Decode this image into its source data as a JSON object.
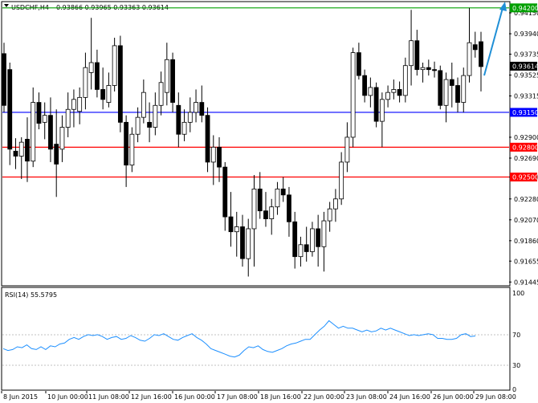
{
  "header": {
    "symbol": "USDCHF,H4",
    "ohlc": "0.93866 0.93965 0.93363 0.93614"
  },
  "rsi": {
    "label": "RSI(14) 55.5795",
    "levels": [
      "100",
      "70",
      "30",
      "0"
    ]
  },
  "colors": {
    "bull_body": "#ffffff",
    "bear_body": "#000000",
    "candle_line": "#000000",
    "level_green": "#00a000",
    "level_blue": "#0000ff",
    "level_red": "#ff0000",
    "rsi_line": "#1e90ff",
    "arrow": "#1f8fd6",
    "current_price_box": "#000000"
  },
  "chart_data": {
    "type": "candlestick",
    "price_axis": [
      "0.94150",
      "0.93940",
      "0.93735",
      "0.93525",
      "0.93315",
      "0.92900",
      "0.92690",
      "0.92500",
      "0.92280",
      "0.92070",
      "0.91860",
      "0.91655",
      "0.91445"
    ],
    "ylim": [
      0.91415,
      0.94255
    ],
    "levels": [
      {
        "price": 0.942,
        "label": "0.94200",
        "color": "green"
      },
      {
        "price": 0.9315,
        "label": "0.93150",
        "color": "blue"
      },
      {
        "price": 0.928,
        "label": "0.92800",
        "color": "red"
      },
      {
        "price": 0.925,
        "label": "0.92500",
        "color": "red"
      }
    ],
    "current_price": {
      "value": 0.93614,
      "label": "0.93614"
    },
    "x_labels": [
      "8 Jun 2015",
      "10 Jun 00:00",
      "11 Jun 08:00",
      "12 Jun 16:00",
      "16 Jun 00:00",
      "17 Jun 08:00",
      "18 Jun 16:00",
      "22 Jun 00:00",
      "23 Jun 08:00",
      "24 Jun 16:00",
      "26 Jun 00:00",
      "29 Jun 08:00"
    ],
    "candles": [
      {
        "o": 0.9374,
        "h": 0.9385,
        "l": 0.9315,
        "c": 0.9322
      },
      {
        "o": 0.9358,
        "h": 0.9365,
        "l": 0.9262,
        "c": 0.9278
      },
      {
        "o": 0.9276,
        "h": 0.9289,
        "l": 0.9258,
        "c": 0.9271
      },
      {
        "o": 0.9271,
        "h": 0.929,
        "l": 0.9248,
        "c": 0.9285
      },
      {
        "o": 0.9288,
        "h": 0.931,
        "l": 0.9245,
        "c": 0.9266
      },
      {
        "o": 0.9266,
        "h": 0.934,
        "l": 0.926,
        "c": 0.9325
      },
      {
        "o": 0.9325,
        "h": 0.9335,
        "l": 0.9298,
        "c": 0.9304
      },
      {
        "o": 0.9305,
        "h": 0.9325,
        "l": 0.9288,
        "c": 0.9312
      },
      {
        "o": 0.9312,
        "h": 0.933,
        "l": 0.9265,
        "c": 0.9278
      },
      {
        "o": 0.9283,
        "h": 0.9318,
        "l": 0.923,
        "c": 0.9263
      },
      {
        "o": 0.9278,
        "h": 0.9312,
        "l": 0.9265,
        "c": 0.93
      },
      {
        "o": 0.93,
        "h": 0.9335,
        "l": 0.929,
        "c": 0.9318
      },
      {
        "o": 0.9318,
        "h": 0.9338,
        "l": 0.93,
        "c": 0.9328
      },
      {
        "o": 0.9316,
        "h": 0.934,
        "l": 0.9303,
        "c": 0.933
      },
      {
        "o": 0.933,
        "h": 0.9375,
        "l": 0.9318,
        "c": 0.936
      },
      {
        "o": 0.9355,
        "h": 0.941,
        "l": 0.9338,
        "c": 0.9365
      },
      {
        "o": 0.9365,
        "h": 0.9378,
        "l": 0.933,
        "c": 0.9338
      },
      {
        "o": 0.9338,
        "h": 0.936,
        "l": 0.9318,
        "c": 0.9328
      },
      {
        "o": 0.9325,
        "h": 0.9355,
        "l": 0.932,
        "c": 0.9342
      },
      {
        "o": 0.9342,
        "h": 0.939,
        "l": 0.9336,
        "c": 0.9382
      },
      {
        "o": 0.9382,
        "h": 0.9392,
        "l": 0.9295,
        "c": 0.9305
      },
      {
        "o": 0.9305,
        "h": 0.9312,
        "l": 0.924,
        "c": 0.9262
      },
      {
        "o": 0.9262,
        "h": 0.93,
        "l": 0.9255,
        "c": 0.9293
      },
      {
        "o": 0.9293,
        "h": 0.932,
        "l": 0.9285,
        "c": 0.931
      },
      {
        "o": 0.931,
        "h": 0.9348,
        "l": 0.9304,
        "c": 0.9335
      },
      {
        "o": 0.9305,
        "h": 0.9325,
        "l": 0.9285,
        "c": 0.93
      },
      {
        "o": 0.93,
        "h": 0.9335,
        "l": 0.9292,
        "c": 0.9322
      },
      {
        "o": 0.9322,
        "h": 0.9356,
        "l": 0.9312,
        "c": 0.9345
      },
      {
        "o": 0.9335,
        "h": 0.9385,
        "l": 0.9322,
        "c": 0.9368
      },
      {
        "o": 0.9368,
        "h": 0.9375,
        "l": 0.9315,
        "c": 0.9325
      },
      {
        "o": 0.9322,
        "h": 0.9335,
        "l": 0.928,
        "c": 0.9293
      },
      {
        "o": 0.9293,
        "h": 0.9318,
        "l": 0.9286,
        "c": 0.9305
      },
      {
        "o": 0.9305,
        "h": 0.933,
        "l": 0.9295,
        "c": 0.9315
      },
      {
        "o": 0.9315,
        "h": 0.9338,
        "l": 0.9305,
        "c": 0.9325
      },
      {
        "o": 0.9325,
        "h": 0.9342,
        "l": 0.9305,
        "c": 0.9312
      },
      {
        "o": 0.9312,
        "h": 0.932,
        "l": 0.9255,
        "c": 0.9265
      },
      {
        "o": 0.9265,
        "h": 0.9292,
        "l": 0.9242,
        "c": 0.928
      },
      {
        "o": 0.928,
        "h": 0.929,
        "l": 0.9245,
        "c": 0.926
      },
      {
        "o": 0.926,
        "h": 0.9265,
        "l": 0.9196,
        "c": 0.921
      },
      {
        "o": 0.921,
        "h": 0.9235,
        "l": 0.918,
        "c": 0.9195
      },
      {
        "o": 0.9195,
        "h": 0.9215,
        "l": 0.917,
        "c": 0.92
      },
      {
        "o": 0.92,
        "h": 0.9212,
        "l": 0.916,
        "c": 0.9168
      },
      {
        "o": 0.9168,
        "h": 0.9208,
        "l": 0.915,
        "c": 0.9198
      },
      {
        "o": 0.9198,
        "h": 0.9252,
        "l": 0.916,
        "c": 0.9238
      },
      {
        "o": 0.9238,
        "h": 0.9255,
        "l": 0.9208,
        "c": 0.9216
      },
      {
        "o": 0.9216,
        "h": 0.9235,
        "l": 0.92,
        "c": 0.9208
      },
      {
        "o": 0.9208,
        "h": 0.9228,
        "l": 0.9192,
        "c": 0.922
      },
      {
        "o": 0.922,
        "h": 0.9245,
        "l": 0.9212,
        "c": 0.9238
      },
      {
        "o": 0.9238,
        "h": 0.925,
        "l": 0.9225,
        "c": 0.9232
      },
      {
        "o": 0.9232,
        "h": 0.924,
        "l": 0.919,
        "c": 0.9205
      },
      {
        "o": 0.9205,
        "h": 0.9215,
        "l": 0.9158,
        "c": 0.917
      },
      {
        "o": 0.917,
        "h": 0.919,
        "l": 0.916,
        "c": 0.9182
      },
      {
        "o": 0.9182,
        "h": 0.92,
        "l": 0.9165,
        "c": 0.9175
      },
      {
        "o": 0.9175,
        "h": 0.9205,
        "l": 0.917,
        "c": 0.9198
      },
      {
        "o": 0.9198,
        "h": 0.9212,
        "l": 0.916,
        "c": 0.918
      },
      {
        "o": 0.918,
        "h": 0.9215,
        "l": 0.9155,
        "c": 0.9206
      },
      {
        "o": 0.9206,
        "h": 0.9225,
        "l": 0.9195,
        "c": 0.9218
      },
      {
        "o": 0.9218,
        "h": 0.9238,
        "l": 0.9205,
        "c": 0.9228
      },
      {
        "o": 0.9228,
        "h": 0.9275,
        "l": 0.9222,
        "c": 0.9265
      },
      {
        "o": 0.9265,
        "h": 0.9305,
        "l": 0.9255,
        "c": 0.929
      },
      {
        "o": 0.929,
        "h": 0.938,
        "l": 0.928,
        "c": 0.9375
      },
      {
        "o": 0.9375,
        "h": 0.9385,
        "l": 0.9348,
        "c": 0.9352
      },
      {
        "o": 0.9352,
        "h": 0.9358,
        "l": 0.9325,
        "c": 0.9332
      },
      {
        "o": 0.9332,
        "h": 0.935,
        "l": 0.932,
        "c": 0.934
      },
      {
        "o": 0.934,
        "h": 0.9345,
        "l": 0.93,
        "c": 0.9306
      },
      {
        "o": 0.9306,
        "h": 0.9335,
        "l": 0.928,
        "c": 0.9328
      },
      {
        "o": 0.9328,
        "h": 0.9342,
        "l": 0.932,
        "c": 0.9335
      },
      {
        "o": 0.9335,
        "h": 0.9348,
        "l": 0.9328,
        "c": 0.9338
      },
      {
        "o": 0.9338,
        "h": 0.9346,
        "l": 0.9325,
        "c": 0.9332
      },
      {
        "o": 0.9332,
        "h": 0.937,
        "l": 0.9325,
        "c": 0.9362
      },
      {
        "o": 0.9362,
        "h": 0.9418,
        "l": 0.9342,
        "c": 0.9387
      },
      {
        "o": 0.9387,
        "h": 0.9398,
        "l": 0.9352,
        "c": 0.9358
      },
      {
        "o": 0.9358,
        "h": 0.9365,
        "l": 0.9345,
        "c": 0.936
      },
      {
        "o": 0.936,
        "h": 0.9368,
        "l": 0.9352,
        "c": 0.9358
      },
      {
        "o": 0.9358,
        "h": 0.9366,
        "l": 0.935,
        "c": 0.9357
      },
      {
        "o": 0.9357,
        "h": 0.9362,
        "l": 0.9318,
        "c": 0.9322
      },
      {
        "o": 0.9322,
        "h": 0.9355,
        "l": 0.9305,
        "c": 0.9348
      },
      {
        "o": 0.9348,
        "h": 0.9365,
        "l": 0.932,
        "c": 0.9342
      },
      {
        "o": 0.9342,
        "h": 0.935,
        "l": 0.9315,
        "c": 0.9325
      },
      {
        "o": 0.9325,
        "h": 0.936,
        "l": 0.9315,
        "c": 0.9352
      },
      {
        "o": 0.9352,
        "h": 0.942,
        "l": 0.9345,
        "c": 0.9385
      },
      {
        "o": 0.9383,
        "h": 0.9396,
        "l": 0.937,
        "c": 0.9378
      },
      {
        "o": 0.9386,
        "h": 0.9396,
        "l": 0.9336,
        "c": 0.9361
      }
    ],
    "rsi_values": [
      42,
      40,
      41,
      44,
      43,
      46,
      42,
      41,
      44,
      41,
      45,
      44,
      47,
      48,
      52,
      54,
      52,
      55,
      57,
      56,
      57,
      55,
      52,
      54,
      55,
      52,
      53,
      56,
      54,
      51,
      50,
      53,
      57,
      56,
      58,
      55,
      52,
      51,
      54,
      56,
      58,
      54,
      51,
      47,
      42,
      40,
      38,
      36,
      34,
      33,
      35,
      40,
      44,
      43,
      45,
      41,
      39,
      38,
      40,
      42,
      45,
      47,
      48,
      50,
      52,
      52,
      57,
      62,
      66,
      72,
      68,
      64,
      66,
      64,
      64,
      62,
      60,
      62,
      60,
      61,
      64,
      62,
      64,
      62,
      60,
      58,
      56,
      57,
      56,
      57,
      58,
      57,
      53,
      53,
      52,
      52,
      53,
      57,
      58,
      55,
      55.58
    ],
    "rsi_range": [
      0,
      100
    ]
  }
}
